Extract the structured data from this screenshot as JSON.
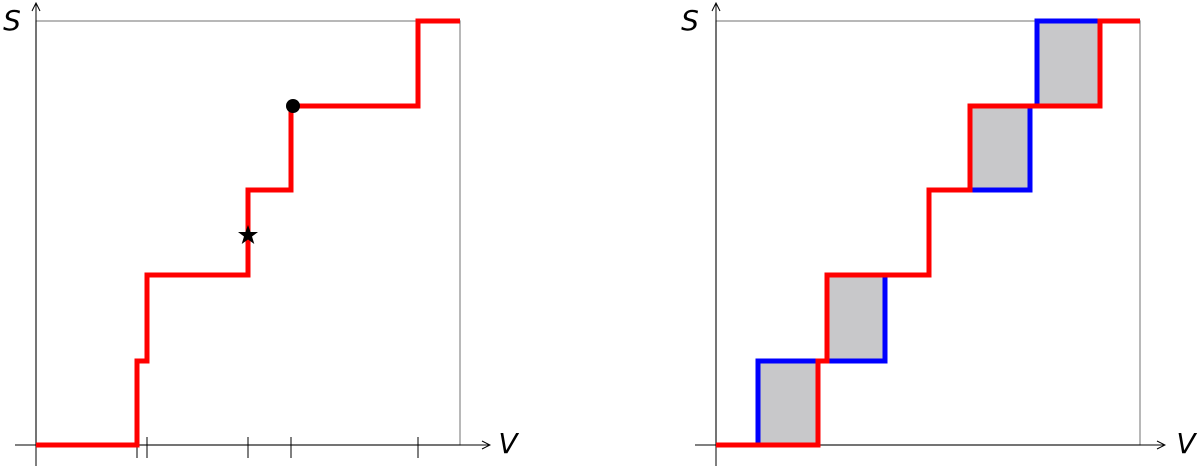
{
  "left_panel": {
    "y_label": "S",
    "x_label": "V"
  },
  "right_panel": {
    "y_label": "S",
    "x_label": "V"
  }
}
